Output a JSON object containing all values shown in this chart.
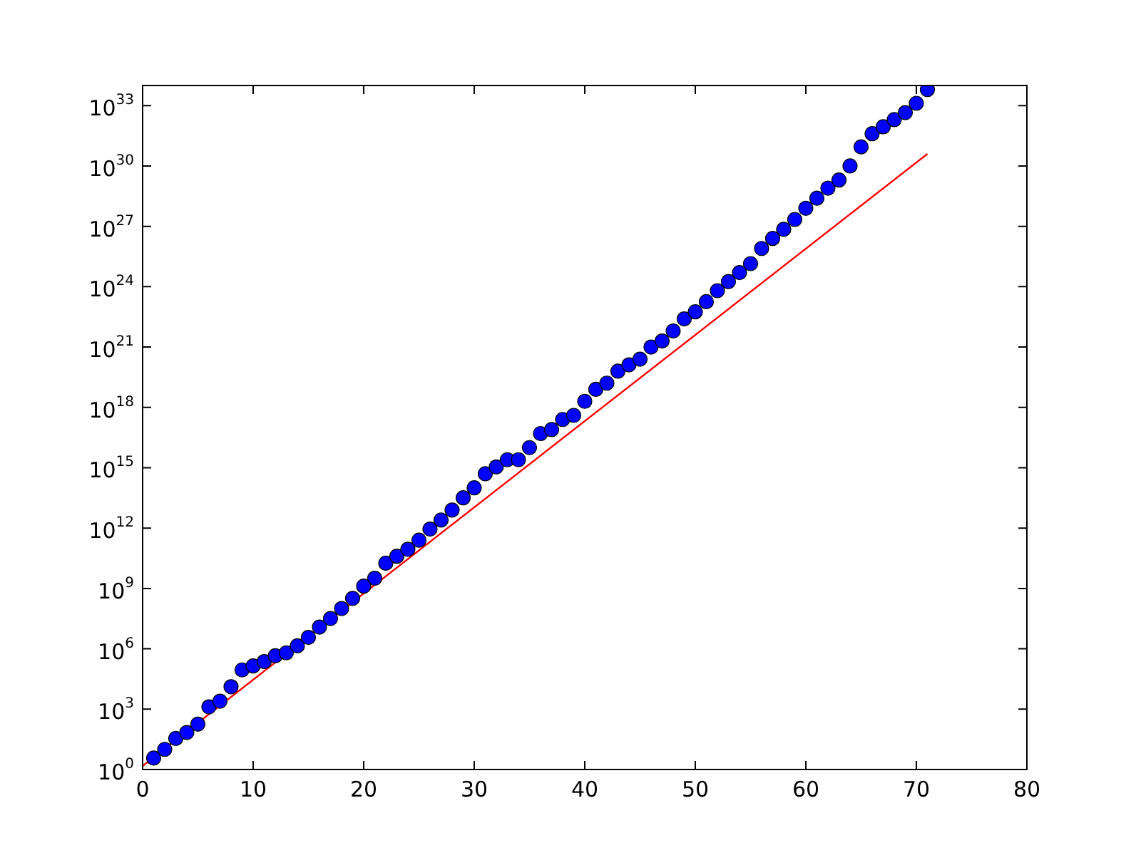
{
  "chart_data": {
    "type": "scatter",
    "log": "y",
    "grid": false,
    "marker": "circle",
    "legend": false,
    "xlim": [
      0,
      80
    ],
    "xticks": [
      0,
      10,
      20,
      30,
      40,
      50,
      60,
      70,
      80
    ],
    "ylim": [
      1,
      1e+34
    ],
    "yticks": [
      {
        "value": 1,
        "label": "10$^{0}$"
      },
      {
        "value": 1000.0,
        "label": "10$^{3}$"
      },
      {
        "value": 1000000.0,
        "label": "10$^{6}$"
      },
      {
        "value": 1000000000.0,
        "label": "10$^{9}$"
      },
      {
        "value": 1000000000000.0,
        "label": "10$^{12}$"
      },
      {
        "value": 1000000000000000.0,
        "label": "10$^{15}$"
      },
      {
        "value": 1e+18,
        "label": "10$^{18}$"
      },
      {
        "value": 1e+21,
        "label": "10$^{21}$"
      },
      {
        "value": 1e+24,
        "label": "10$^{24}$"
      },
      {
        "value": 1e+27,
        "label": "10$^{27}$"
      },
      {
        "value": 1e+30,
        "label": "10$^{30}$"
      },
      {
        "value": 1e+33,
        "label": "10$^{33}$"
      }
    ],
    "series": [
      {
        "color": "#0000ff",
        "x": [
          1,
          2,
          3,
          4,
          5,
          6,
          7,
          8,
          9,
          10,
          11,
          12,
          13,
          14,
          15,
          16,
          17,
          18,
          19,
          20,
          21,
          22,
          23,
          24,
          25,
          26,
          27,
          28,
          29,
          30,
          31,
          32,
          33,
          34,
          35,
          36,
          37,
          38,
          39,
          40,
          41,
          42,
          43,
          44,
          45,
          46,
          47,
          48,
          49,
          50,
          51,
          52,
          53,
          54,
          55,
          56,
          57,
          58,
          59,
          60,
          61,
          62,
          63,
          64,
          65,
          66,
          67,
          68,
          69,
          70,
          71
        ],
        "values": [
          3.7,
          10,
          35,
          69,
          180,
          1300.0,
          2500.0,
          13000.0,
          89000.0,
          140000.0,
          230000.0,
          450000.0,
          630000.0,
          1400000.0,
          3700000.0,
          12000000.0,
          32000000.0,
          100000000.0,
          320000000.0,
          1300000000.0,
          3200000000.0,
          18000000000.0,
          40000000000.0,
          89000000000.0,
          250000000000.0,
          890000000000.0,
          2500000000000.0,
          7900000000000.0,
          32000000000000.0,
          100000000000000.0,
          500000000000000.0,
          1100000000000000.0,
          2500000000000000.0,
          2500000000000000.0,
          1e+16,
          5e+16,
          7.9e+16,
          2.5e+17,
          4e+17,
          2e+18,
          7.9e+18,
          1.6e+19,
          6.3e+19,
          1.3e+20,
          2.5e+20,
          1e+21,
          2e+21,
          6.3e+21,
          2.5e+22,
          5.6e+22,
          1.8e+23,
          6.3e+23,
          1.8e+24,
          5e+24,
          1.4e+25,
          7.9e+25,
          2.5e+26,
          7.1e+26,
          2.2e+27,
          7.9e+27,
          2.5e+28,
          7.9e+28,
          2e+29,
          1e+30,
          8.9e+30,
          4e+31,
          8.9e+31,
          2e+32,
          4.5e+32,
          1.3e+33,
          6.3e+33
        ]
      },
      {
        "type": "line",
        "color": "#ff0000",
        "line_style": "solid",
        "marker": "none",
        "x": [
          0,
          71
        ],
        "values": [
          1.5,
          4e+30
        ]
      }
    ]
  }
}
